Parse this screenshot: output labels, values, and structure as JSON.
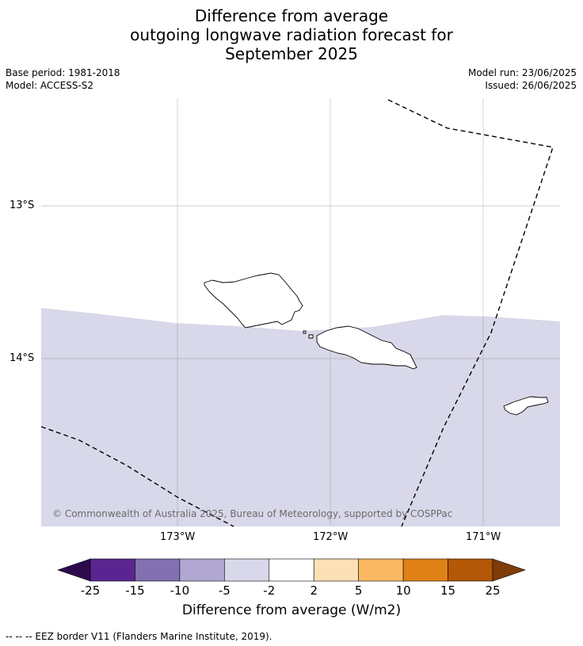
{
  "title": {
    "line1": "Difference from average",
    "line2": "outgoing longwave radiation forecast for",
    "line3": "September 2025"
  },
  "meta": {
    "base_period": "Base period: 1981-2018",
    "model": "Model: ACCESS-S2",
    "model_run": "Model run: 23/06/2025",
    "issued": "Issued: 26/06/2025"
  },
  "map": {
    "latitude_labels": [
      "13°S",
      "14°S"
    ],
    "longitude_labels": [
      "173°W",
      "172°W",
      "171°W"
    ],
    "shaded_category": "-5 to -2",
    "shade_color": "#d8d8ea",
    "copyright": "© Commonwealth of Australia 2025, Bureau of Meteorology, supported by COSPPac"
  },
  "colorbar": {
    "title": "Difference from average (W/m2)",
    "ticks": [
      "-25",
      "-15",
      "-10",
      "-5",
      "-2",
      "2",
      "5",
      "10",
      "15",
      "25"
    ],
    "colors": [
      "#5a2590",
      "#8270b0",
      "#b0a8d2",
      "#d8d8ea",
      "#ffffff",
      "#fde0b6",
      "#fbb862",
      "#e08117",
      "#b35806"
    ],
    "low_extend_color": "#2d0a4e",
    "high_extend_color": "#7f3b08"
  },
  "footnote": "-- -- -- EEZ border V11 (Flanders Marine Institute, 2019)."
}
